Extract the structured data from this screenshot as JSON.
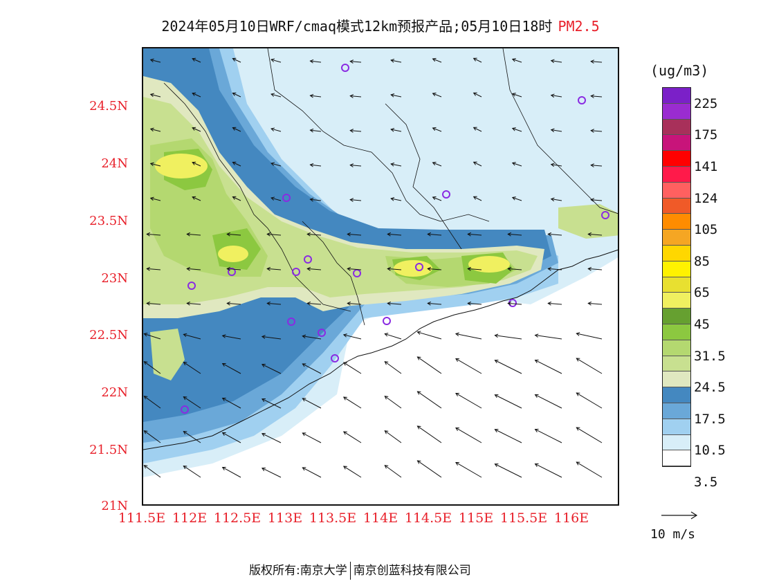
{
  "title": {
    "main": "2024年05月10日WRF/cmaq模式12km预报产品;05月10日18时",
    "variable": "PM2.5"
  },
  "axes": {
    "lat_labels": [
      "24.5N",
      "24N",
      "23.5N",
      "23N",
      "22.5N",
      "22N",
      "21.5N",
      "21N"
    ],
    "lon_labels": [
      "111.5E",
      "112E",
      "112.5E",
      "113E",
      "113.5E",
      "114E",
      "114.5E",
      "115E",
      "115.5E",
      "116E"
    ]
  },
  "legend": {
    "units": "(ug/m3)",
    "labels": [
      "225",
      "175",
      "141",
      "124",
      "105",
      "85",
      "65",
      "45",
      "31.5",
      "24.5",
      "17.5",
      "10.5",
      "3.5"
    ],
    "colors": [
      "#7b20c8",
      "#9a2cd0",
      "#a8305a",
      "#c8147a",
      "#ff0000",
      "#ff1a4a",
      "#ff6060",
      "#f05a28",
      "#ff8c00",
      "#f5a623",
      "#ffd700",
      "#fff200",
      "#e8e030",
      "#f0f060",
      "#66a030",
      "#8cc840",
      "#b4d870",
      "#c8e090",
      "#e0e8c0",
      "#4488c0",
      "#6aa8d8",
      "#a0d0f0",
      "#d8eef8",
      "#ffffff"
    ],
    "wind_ref_label": "10 m/s"
  },
  "footer": {
    "copyright": "版权所有:南京大学",
    "company": "南京创蓝科技有限公司"
  }
}
